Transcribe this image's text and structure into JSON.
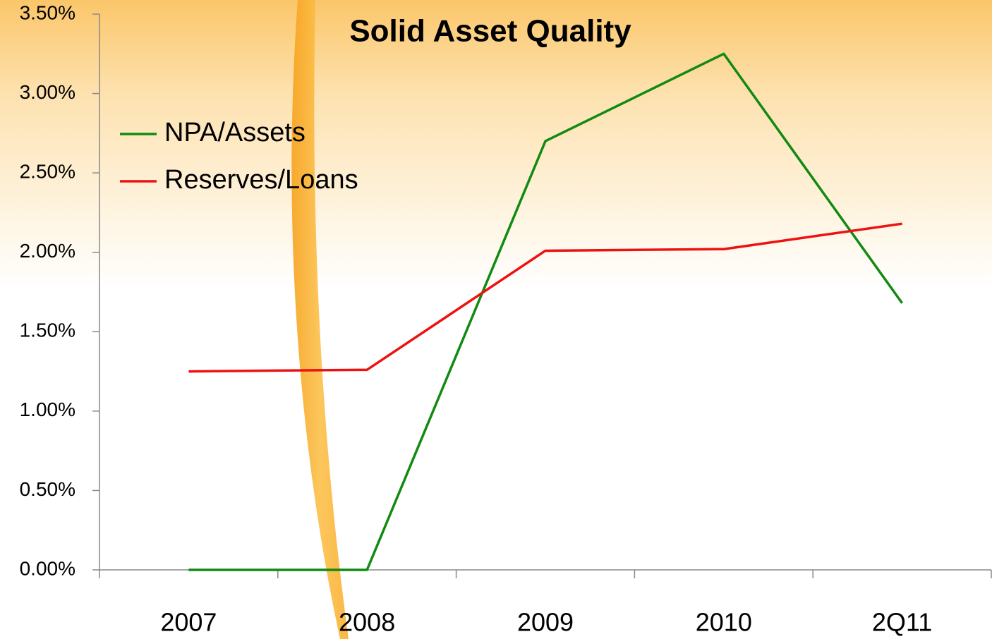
{
  "chart_data": {
    "type": "line",
    "title": "Solid Asset Quality",
    "categories": [
      "2007",
      "2008",
      "2009",
      "2010",
      "2Q11"
    ],
    "series": [
      {
        "name": "NPA/Assets",
        "color": "#118a11",
        "values": [
          0,
          0,
          2.7,
          3.25,
          1.68
        ]
      },
      {
        "name": "Reserves/Loans",
        "color": "#ee1111",
        "values": [
          1.25,
          1.26,
          2.01,
          2.02,
          2.18
        ]
      }
    ],
    "ylim": [
      0,
      3.5
    ],
    "yticks": [
      {
        "value": 0,
        "label": "0.00%"
      },
      {
        "value": 0.5,
        "label": "0.50%"
      },
      {
        "value": 1,
        "label": "1.00%"
      },
      {
        "value": 1.5,
        "label": "1.50%"
      },
      {
        "value": 2,
        "label": "2.00%"
      },
      {
        "value": 2.5,
        "label": "2.50%"
      },
      {
        "value": 3,
        "label": "3.00%"
      },
      {
        "value": 3.5,
        "label": "3.50%"
      }
    ],
    "grid": false,
    "legend": "upper left"
  }
}
